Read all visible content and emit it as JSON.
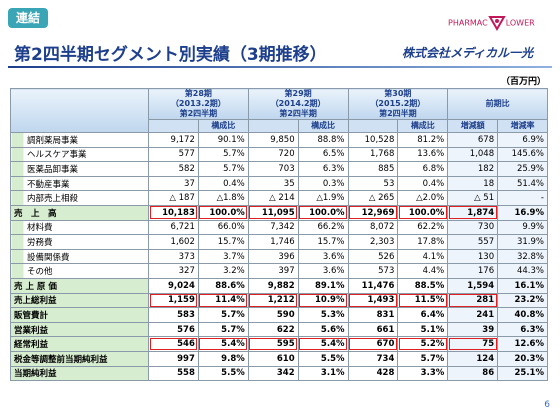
{
  "header": {
    "badge": "連結",
    "title": "第2四半期セグメント別実績（3期推移）",
    "logo_left": "PHARMAC",
    "logo_right": "LOWER",
    "company": "株式会社メディカル一光",
    "unit": "（百万円）"
  },
  "table": {
    "groups": [
      {
        "lines": [
          "第28期",
          "（2013.2期）",
          "第2四半期"
        ],
        "sub": [
          "構成比"
        ]
      },
      {
        "lines": [
          "第29期",
          "（2014.2期）",
          "第2四半期"
        ],
        "sub": [
          "構成比"
        ]
      },
      {
        "lines": [
          "第30期",
          "（2015.2期）",
          "第2四半期"
        ],
        "sub": [
          "構成比"
        ]
      },
      {
        "lines": [
          "前期比"
        ],
        "sub": [
          "増減額",
          "増減率"
        ]
      }
    ],
    "rows": [
      {
        "label": "調剤薬局事業",
        "kind": "sub",
        "cells": [
          "9,172",
          "90.1%",
          "9,850",
          "88.8%",
          "10,528",
          "81.2%",
          "678",
          "6.9%"
        ]
      },
      {
        "label": "ヘルスケア事業",
        "kind": "sub",
        "cells": [
          "577",
          "5.7%",
          "720",
          "6.5%",
          "1,768",
          "13.6%",
          "1,048",
          "145.6%"
        ]
      },
      {
        "label": "医薬品卸事業",
        "kind": "sub",
        "cells": [
          "582",
          "5.7%",
          "703",
          "6.3%",
          "885",
          "6.8%",
          "182",
          "25.9%"
        ]
      },
      {
        "label": "不動産事業",
        "kind": "sub",
        "cells": [
          "37",
          "0.4%",
          "35",
          "0.3%",
          "53",
          "0.4%",
          "18",
          "51.4%"
        ]
      },
      {
        "label": "内部売上相殺",
        "kind": "sub",
        "cells": [
          "△ 187",
          "△1.8%",
          "△ 214",
          "△1.9%",
          "△ 265",
          "△2.0%",
          "△ 51",
          "-"
        ]
      },
      {
        "label": "売　上　高",
        "kind": "main",
        "highlight": true,
        "cells": [
          "10,183",
          "100.0%",
          "11,095",
          "100.0%",
          "12,969",
          "100.0%",
          "1,874",
          "16.9%"
        ]
      },
      {
        "label": "材料費",
        "kind": "sub",
        "cells": [
          "6,721",
          "66.0%",
          "7,342",
          "66.2%",
          "8,072",
          "62.2%",
          "730",
          "9.9%"
        ]
      },
      {
        "label": "労務費",
        "kind": "sub",
        "cells": [
          "1,602",
          "15.7%",
          "1,746",
          "15.7%",
          "2,303",
          "17.8%",
          "557",
          "31.9%"
        ]
      },
      {
        "label": "設備関係費",
        "kind": "sub",
        "cells": [
          "373",
          "3.7%",
          "396",
          "3.6%",
          "526",
          "4.1%",
          "130",
          "32.8%"
        ]
      },
      {
        "label": "その他",
        "kind": "sub",
        "cells": [
          "327",
          "3.2%",
          "397",
          "3.6%",
          "573",
          "4.4%",
          "176",
          "44.3%"
        ]
      },
      {
        "label": "売 上 原 価",
        "kind": "main",
        "cells": [
          "9,024",
          "88.6%",
          "9,882",
          "89.1%",
          "11,476",
          "88.5%",
          "1,594",
          "16.1%"
        ]
      },
      {
        "label": "売上総利益",
        "kind": "main",
        "highlight": true,
        "cells": [
          "1,159",
          "11.4%",
          "1,212",
          "10.9%",
          "1,493",
          "11.5%",
          "281",
          "23.2%"
        ]
      },
      {
        "label": "販管費計",
        "kind": "main",
        "cells": [
          "583",
          "5.7%",
          "590",
          "5.3%",
          "831",
          "6.4%",
          "241",
          "40.8%"
        ]
      },
      {
        "label": "営業利益",
        "kind": "main",
        "cells": [
          "576",
          "5.7%",
          "622",
          "5.6%",
          "661",
          "5.1%",
          "39",
          "6.3%"
        ]
      },
      {
        "label": "経常利益",
        "kind": "main",
        "highlight": true,
        "cells": [
          "546",
          "5.4%",
          "595",
          "5.4%",
          "670",
          "5.2%",
          "75",
          "12.6%"
        ]
      },
      {
        "label": "税金等調整前当期純利益",
        "kind": "main",
        "cells": [
          "997",
          "9.8%",
          "610",
          "5.5%",
          "734",
          "5.7%",
          "124",
          "20.3%"
        ]
      },
      {
        "label": "当期純利益",
        "kind": "main",
        "cells": [
          "558",
          "5.5%",
          "342",
          "3.1%",
          "428",
          "3.3%",
          "86",
          "25.1%"
        ]
      }
    ]
  },
  "footer": {
    "page": "6"
  }
}
